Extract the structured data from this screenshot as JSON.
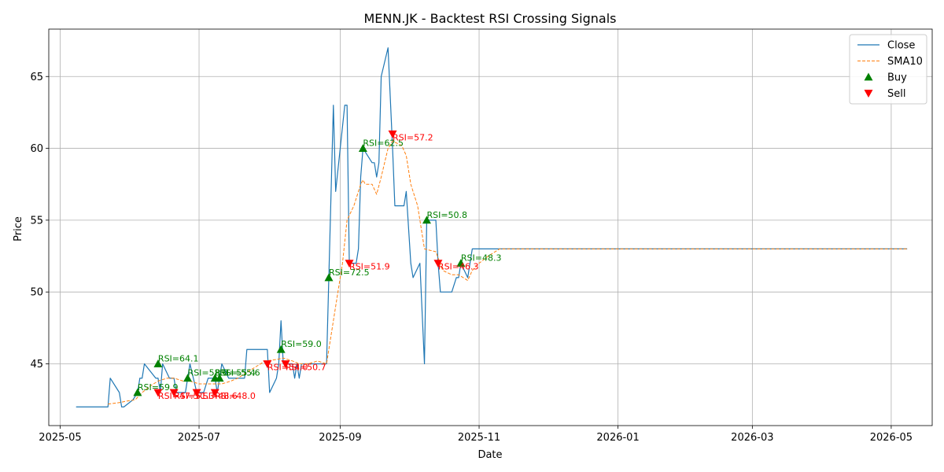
{
  "chart_data": {
    "type": "line",
    "title": "MENN.JK - Backtest RSI Crossing Signals",
    "xlabel": "Date",
    "ylabel": "Price",
    "xlim": [
      "2025-04-26",
      "2026-05-19"
    ],
    "ylim": [
      40.7,
      68.3
    ],
    "grid": true,
    "legend_position": "top-right",
    "x_ticks": [
      "2025-05",
      "2025-07",
      "2025-09",
      "2025-11",
      "2026-01",
      "2026-03",
      "2026-05"
    ],
    "y_ticks": [
      45,
      50,
      55,
      60,
      65
    ],
    "legend": [
      {
        "label": "Close",
        "kind": "line",
        "color": "#1f77b4"
      },
      {
        "label": "SMA10",
        "kind": "dashed",
        "color": "#ff7f0e"
      },
      {
        "label": "Buy",
        "kind": "up-triangle",
        "color": "#008000"
      },
      {
        "label": "Sell",
        "kind": "down-triangle",
        "color": "#ff0000"
      }
    ],
    "series": [
      {
        "name": "Close",
        "color": "#1f77b4",
        "points": [
          [
            "2025-05-08",
            42
          ],
          [
            "2025-05-22",
            42
          ],
          [
            "2025-05-23",
            44
          ],
          [
            "2025-05-27",
            43
          ],
          [
            "2025-05-28",
            42
          ],
          [
            "2025-05-29",
            42
          ],
          [
            "2025-06-02",
            42.5
          ],
          [
            "2025-06-04",
            43
          ],
          [
            "2025-06-05",
            44
          ],
          [
            "2025-06-06",
            44
          ],
          [
            "2025-06-07",
            45
          ],
          [
            "2025-06-12",
            44
          ],
          [
            "2025-06-13",
            44
          ],
          [
            "2025-06-14",
            43
          ],
          [
            "2025-06-15",
            45
          ],
          [
            "2025-06-18",
            44
          ],
          [
            "2025-06-20",
            44
          ],
          [
            "2025-06-21",
            43
          ],
          [
            "2025-06-25",
            43
          ],
          [
            "2025-06-27",
            45
          ],
          [
            "2025-06-30",
            43
          ],
          [
            "2025-07-03",
            43
          ],
          [
            "2025-07-05",
            44
          ],
          [
            "2025-07-07",
            44
          ],
          [
            "2025-07-08",
            44
          ],
          [
            "2025-07-09",
            43
          ],
          [
            "2025-07-10",
            44
          ],
          [
            "2025-07-11",
            45
          ],
          [
            "2025-07-14",
            44
          ],
          [
            "2025-07-19",
            44
          ],
          [
            "2025-07-21",
            44
          ],
          [
            "2025-07-22",
            46
          ],
          [
            "2025-07-29",
            46
          ],
          [
            "2025-07-31",
            46
          ],
          [
            "2025-08-01",
            43
          ],
          [
            "2025-08-04",
            44
          ],
          [
            "2025-08-05",
            45
          ],
          [
            "2025-08-06",
            48
          ],
          [
            "2025-08-07",
            45
          ],
          [
            "2025-08-11",
            45
          ],
          [
            "2025-08-12",
            44
          ],
          [
            "2025-08-13",
            45
          ],
          [
            "2025-08-14",
            44
          ],
          [
            "2025-08-15",
            45
          ],
          [
            "2025-08-26",
            45
          ],
          [
            "2025-08-27",
            51
          ],
          [
            "2025-08-29",
            63
          ],
          [
            "2025-08-30",
            57
          ],
          [
            "2025-09-03",
            63
          ],
          [
            "2025-09-04",
            63
          ],
          [
            "2025-09-05",
            52
          ],
          [
            "2025-09-08",
            52
          ],
          [
            "2025-09-09",
            53
          ],
          [
            "2025-09-10",
            58
          ],
          [
            "2025-09-11",
            60
          ],
          [
            "2025-09-15",
            59
          ],
          [
            "2025-09-16",
            59
          ],
          [
            "2025-09-17",
            58
          ],
          [
            "2025-09-18",
            59
          ],
          [
            "2025-09-19",
            65
          ],
          [
            "2025-09-22",
            67
          ],
          [
            "2025-09-24",
            60
          ],
          [
            "2025-09-25",
            56
          ],
          [
            "2025-09-29",
            56
          ],
          [
            "2025-09-30",
            57
          ],
          [
            "2025-10-02",
            52
          ],
          [
            "2025-10-03",
            51
          ],
          [
            "2025-10-06",
            52
          ],
          [
            "2025-10-08",
            45
          ],
          [
            "2025-10-09",
            55
          ],
          [
            "2025-10-10",
            55
          ],
          [
            "2025-10-13",
            55
          ],
          [
            "2025-10-14",
            52
          ],
          [
            "2025-10-15",
            50
          ],
          [
            "2025-10-20",
            50
          ],
          [
            "2025-10-22",
            51
          ],
          [
            "2025-10-23",
            51
          ],
          [
            "2025-10-24",
            52
          ],
          [
            "2025-10-27",
            51
          ],
          [
            "2025-10-29",
            53
          ],
          [
            "2026-05-08",
            53
          ]
        ]
      },
      {
        "name": "SMA10",
        "color": "#ff7f0e",
        "points": [
          [
            "2025-05-22",
            42.2
          ],
          [
            "2025-05-27",
            42.3
          ],
          [
            "2025-05-30",
            42.4
          ],
          [
            "2025-06-03",
            42.5
          ],
          [
            "2025-06-06",
            43
          ],
          [
            "2025-06-10",
            43.5
          ],
          [
            "2025-06-13",
            43.8
          ],
          [
            "2025-06-17",
            44
          ],
          [
            "2025-06-20",
            44
          ],
          [
            "2025-06-24",
            43.8
          ],
          [
            "2025-06-27",
            43.8
          ],
          [
            "2025-07-01",
            43.6
          ],
          [
            "2025-07-04",
            43.6
          ],
          [
            "2025-07-08",
            43.6
          ],
          [
            "2025-07-11",
            43.6
          ],
          [
            "2025-07-15",
            43.8
          ],
          [
            "2025-07-18",
            44
          ],
          [
            "2025-07-22",
            44.4
          ],
          [
            "2025-07-26",
            44.8
          ],
          [
            "2025-07-30",
            45.2
          ],
          [
            "2025-08-04",
            45.3
          ],
          [
            "2025-08-07",
            45.4
          ],
          [
            "2025-08-11",
            45.2
          ],
          [
            "2025-08-14",
            45
          ],
          [
            "2025-08-18",
            45
          ],
          [
            "2025-08-22",
            45.2
          ],
          [
            "2025-08-26",
            45
          ],
          [
            "2025-08-28",
            47
          ],
          [
            "2025-08-30",
            49
          ],
          [
            "2025-09-02",
            52
          ],
          [
            "2025-09-04",
            55
          ],
          [
            "2025-09-07",
            56
          ],
          [
            "2025-09-10",
            57.5
          ],
          [
            "2025-09-11",
            57.8
          ],
          [
            "2025-09-12",
            57.5
          ],
          [
            "2025-09-15",
            57.5
          ],
          [
            "2025-09-17",
            56.8
          ],
          [
            "2025-09-19",
            58
          ],
          [
            "2025-09-22",
            60
          ],
          [
            "2025-09-24",
            60.5
          ],
          [
            "2025-09-28",
            60.2
          ],
          [
            "2025-09-30",
            59.5
          ],
          [
            "2025-10-02",
            57.5
          ],
          [
            "2025-10-05",
            56
          ],
          [
            "2025-10-08",
            53
          ],
          [
            "2025-10-13",
            52.8
          ],
          [
            "2025-10-16",
            51.5
          ],
          [
            "2025-10-20",
            51.2
          ],
          [
            "2025-10-23",
            51.2
          ],
          [
            "2025-10-27",
            50.8
          ],
          [
            "2025-10-29",
            51.5
          ],
          [
            "2025-11-01",
            52
          ],
          [
            "2025-11-05",
            52.5
          ],
          [
            "2025-11-10",
            53
          ],
          [
            "2026-05-08",
            53
          ]
        ]
      }
    ],
    "buy_signals": [
      {
        "date": "2025-06-04",
        "price": 43,
        "label": "RSI=59.9"
      },
      {
        "date": "2025-06-13",
        "price": 45,
        "label": "RSI=64.1"
      },
      {
        "date": "2025-06-26",
        "price": 44,
        "label": "RSI=58.6"
      },
      {
        "date": "2025-07-08",
        "price": 44,
        "label": "RSI=55.4"
      },
      {
        "date": "2025-07-10",
        "price": 44,
        "label": "RSI=55.6"
      },
      {
        "date": "2025-08-06",
        "price": 46,
        "label": "RSI=59.0"
      },
      {
        "date": "2025-08-27",
        "price": 51,
        "label": "RSI=72.5"
      },
      {
        "date": "2025-09-11",
        "price": 60,
        "label": "RSI=62.5"
      },
      {
        "date": "2025-10-09",
        "price": 55,
        "label": "RSI=50.8"
      },
      {
        "date": "2025-10-24",
        "price": 52,
        "label": "RSI=48.3"
      }
    ],
    "sell_signals": [
      {
        "date": "2025-06-13",
        "price": 43,
        "label": "RSI=47.5"
      },
      {
        "date": "2025-06-20",
        "price": 43,
        "label": "RSI=51.3"
      },
      {
        "date": "2025-06-30",
        "price": 43,
        "label": "RSI=48.6"
      },
      {
        "date": "2025-07-08",
        "price": 43,
        "label": "RSI=48.0"
      },
      {
        "date": "2025-07-31",
        "price": 45,
        "label": "RSI=54.0"
      },
      {
        "date": "2025-08-08",
        "price": 45,
        "label": "RSI=50.7"
      },
      {
        "date": "2025-09-05",
        "price": 52,
        "label": "RSI=51.9"
      },
      {
        "date": "2025-09-24",
        "price": 61,
        "label": "RSI=57.2"
      },
      {
        "date": "2025-10-14",
        "price": 52,
        "label": "RSI=46.3"
      }
    ]
  }
}
